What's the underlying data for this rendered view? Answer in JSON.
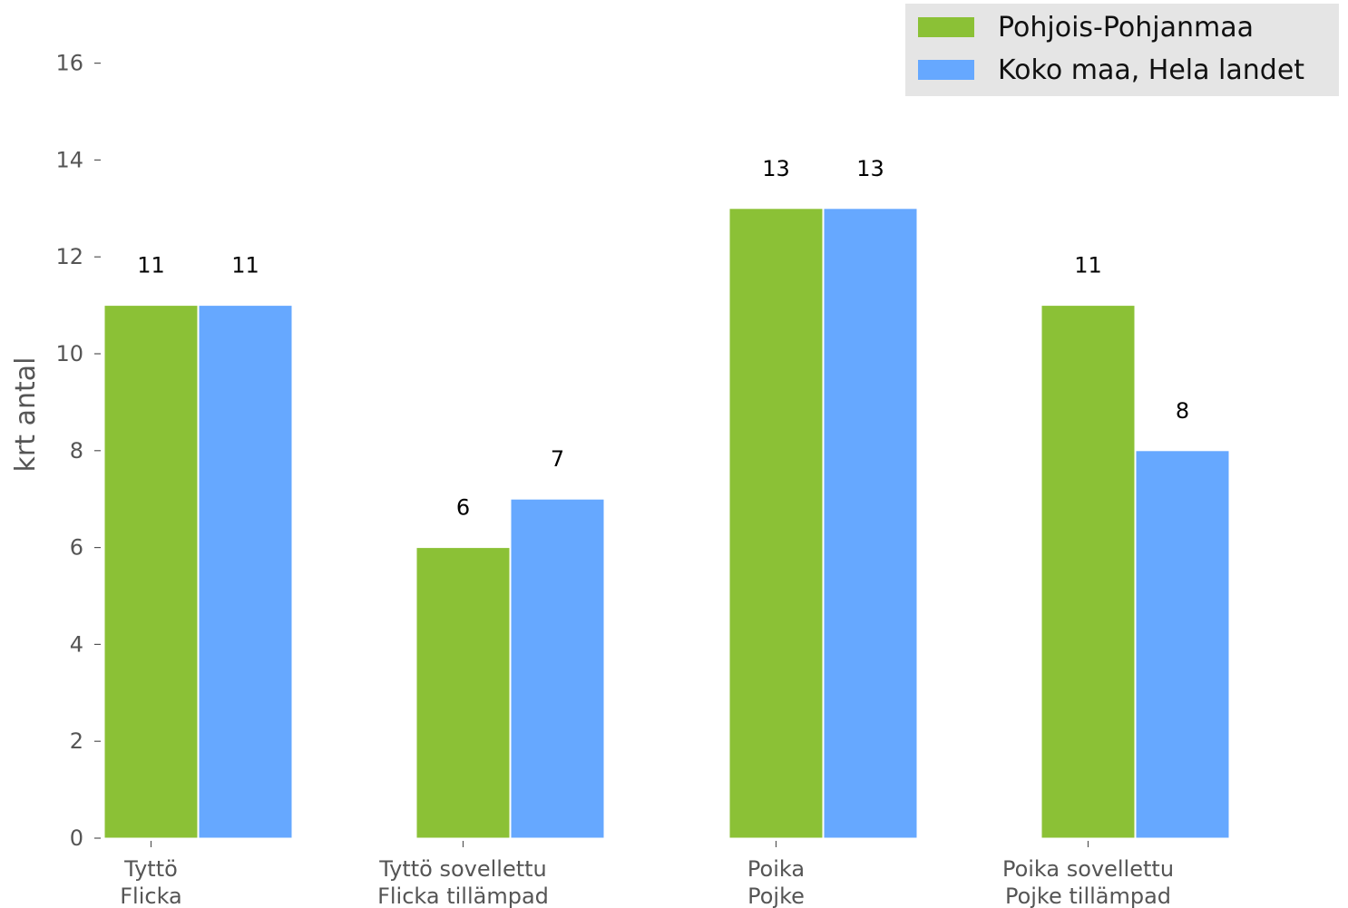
{
  "chart_data": {
    "type": "bar",
    "title": "",
    "xlabel": "",
    "ylabel": "krt antal",
    "ylim": [
      0,
      16
    ],
    "yticks": [
      0,
      2,
      4,
      6,
      8,
      10,
      12,
      14,
      16
    ],
    "grid": false,
    "legend": "top-right",
    "categories": [
      [
        "Tyttö",
        "Flicka"
      ],
      [
        "Tyttö sovellettu",
        "Flicka tillämpad"
      ],
      [
        "Poika",
        "Pojke"
      ],
      [
        "Poika sovellettu",
        "Pojke tillämpad"
      ]
    ],
    "series": [
      {
        "name": "Pohjois-Pohjanmaa",
        "color": "#8bc136",
        "values": [
          11,
          6,
          13,
          11
        ],
        "labels": [
          "11",
          "6",
          "13",
          "11"
        ]
      },
      {
        "name": "Koko maa, Hela landet",
        "color": "#66a8ff",
        "values": [
          11,
          7,
          13,
          8
        ],
        "labels": [
          "11",
          "7",
          "13",
          "8"
        ]
      }
    ]
  }
}
